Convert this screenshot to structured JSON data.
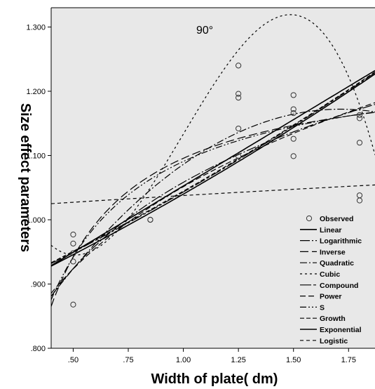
{
  "chart_data": {
    "type": "scatter",
    "title": "",
    "annotation": "90°",
    "xlabel": "Width of plate( dm)",
    "ylabel": "Size effect parameters",
    "xlim": [
      0.4,
      1.87
    ],
    "ylim": [
      0.8,
      1.33
    ],
    "x_ticks": [
      0.5,
      0.75,
      1.0,
      1.25,
      1.5,
      1.75
    ],
    "x_tick_labels": [
      ".50",
      ".75",
      "1.00",
      "1.25",
      "1.50",
      "1.75"
    ],
    "y_ticks": [
      0.8,
      0.9,
      1.0,
      1.1,
      1.2,
      1.3
    ],
    "y_tick_labels": [
      ".800",
      ".900",
      "1.000",
      "1.100",
      "1.200",
      "1.300"
    ],
    "background": "#e8e8e8",
    "grid": false,
    "legend_position": "bottom-right",
    "observed": [
      {
        "x": 0.5,
        "y": 0.868
      },
      {
        "x": 0.5,
        "y": 0.935
      },
      {
        "x": 0.5,
        "y": 0.948
      },
      {
        "x": 0.5,
        "y": 0.963
      },
      {
        "x": 0.5,
        "y": 0.977
      },
      {
        "x": 0.85,
        "y": 1.0
      },
      {
        "x": 0.85,
        "y": 1.0
      },
      {
        "x": 1.25,
        "y": 1.099
      },
      {
        "x": 1.25,
        "y": 1.142
      },
      {
        "x": 1.25,
        "y": 1.19
      },
      {
        "x": 1.25,
        "y": 1.196
      },
      {
        "x": 1.25,
        "y": 1.24
      },
      {
        "x": 1.5,
        "y": 1.099
      },
      {
        "x": 1.5,
        "y": 1.126
      },
      {
        "x": 1.5,
        "y": 1.166
      },
      {
        "x": 1.5,
        "y": 1.172
      },
      {
        "x": 1.5,
        "y": 1.194
      },
      {
        "x": 1.8,
        "y": 1.03
      },
      {
        "x": 1.8,
        "y": 1.038
      },
      {
        "x": 1.8,
        "y": 1.12
      },
      {
        "x": 1.8,
        "y": 1.158
      },
      {
        "x": 1.8,
        "y": 1.163
      }
    ],
    "series": [
      {
        "name": "Observed",
        "kind": "marker"
      },
      {
        "name": "Linear",
        "kind": "line",
        "model": "linear",
        "coef": [
          0.8461,
          0.2065
        ]
      },
      {
        "name": "Logarithmic",
        "kind": "line",
        "model": "logarithmic",
        "coef": [
          1.0583,
          0.1937
        ]
      },
      {
        "name": "Inverse",
        "kind": "line",
        "model": "inverse",
        "coef": [
          1.2494,
          -0.1537
        ]
      },
      {
        "name": "Quadratic",
        "kind": "line",
        "model": "quadratic",
        "coef": [
          0.6766,
          0.5784,
          -0.1688
        ]
      },
      {
        "name": "Cubic",
        "kind": "line",
        "model": "cubic",
        "coef": [
          1.3564,
          -1.8226,
          2.4019,
          -0.8023
        ]
      },
      {
        "name": "Compound",
        "kind": "line",
        "model": "compound",
        "coef": [
          0.8642,
          1.2071
        ]
      },
      {
        "name": "Power",
        "kind": "line",
        "model": "power",
        "coef": [
          1.0515,
          0.1873
        ]
      },
      {
        "name": "S",
        "kind": "line",
        "model": "s",
        "coef": [
          0.2335,
          -0.1466
        ]
      },
      {
        "name": "Growth",
        "kind": "line",
        "model": "growth",
        "coef": [
          -0.1443,
          0.1879
        ]
      },
      {
        "name": "Exponential",
        "kind": "line",
        "model": "exponential",
        "coef": [
          0.86,
          0.19
        ]
      },
      {
        "name": "Logistic",
        "kind": "line",
        "model": "logistic",
        "coef": [
          1.1571,
          0.8285
        ]
      }
    ]
  }
}
